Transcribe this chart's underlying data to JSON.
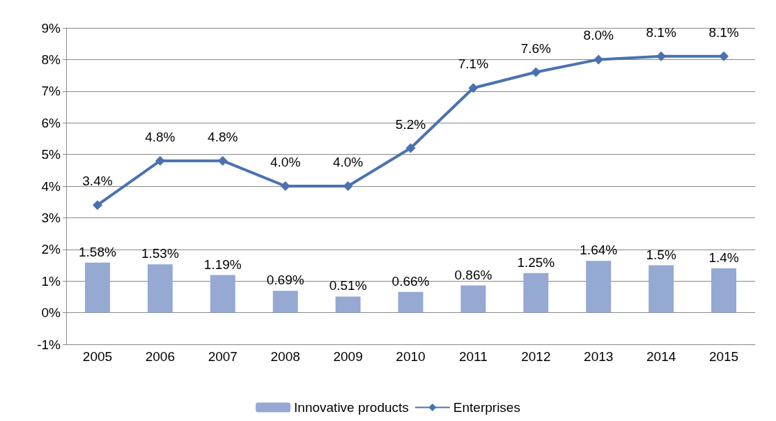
{
  "chart_data": {
    "type": "bar",
    "categories": [
      "2005",
      "2006",
      "2007",
      "2008",
      "2009",
      "2010",
      "2011",
      "2012",
      "2013",
      "2014",
      "2015"
    ],
    "series": [
      {
        "name": "Innovative products",
        "color": "#95a9d3",
        "values": [
          1.58,
          1.53,
          1.19,
          0.69,
          0.51,
          0.66,
          0.86,
          1.25,
          1.64,
          1.5,
          1.4
        ],
        "value_labels": [
          "1.58%",
          "1.53%",
          "1.19%",
          "0.69%",
          "0.51%",
          "0.66%",
          "0.86%",
          "1.25%",
          "1.64%",
          "1.5%",
          "1.4%"
        ]
      },
      {
        "name": "Enterprises",
        "type": "line",
        "color": "#4a72b0",
        "marker": "diamond",
        "values": [
          3.4,
          4.8,
          4.8,
          4.0,
          4.0,
          5.2,
          7.1,
          7.6,
          8.0,
          8.1,
          8.1
        ],
        "value_labels": [
          "3.4%",
          "4.8%",
          "4.8%",
          "4.0%",
          "4.0%",
          "5.2%",
          "7.1%",
          "7.6%",
          "8.0%",
          "8.1%",
          "8.1%"
        ]
      }
    ],
    "ylim": [
      -1,
      9
    ],
    "yticks": [
      {
        "value": -1,
        "label": "-1%"
      },
      {
        "value": 0,
        "label": "0%"
      },
      {
        "value": 1,
        "label": "1%"
      },
      {
        "value": 2,
        "label": "2%"
      },
      {
        "value": 3,
        "label": "3%"
      },
      {
        "value": 4,
        "label": "4%"
      },
      {
        "value": 5,
        "label": "5%"
      },
      {
        "value": 6,
        "label": "6%"
      },
      {
        "value": 7,
        "label": "7%"
      },
      {
        "value": 8,
        "label": "8%"
      },
      {
        "value": 9,
        "label": "9%"
      }
    ],
    "grid": "y",
    "legend": "bottom"
  }
}
